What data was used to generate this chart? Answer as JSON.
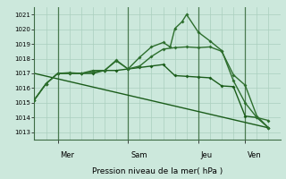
{
  "xlabel": "Pression niveau de la mer( hPa )",
  "ylim": [
    1012.5,
    1021.5
  ],
  "yticks": [
    1013,
    1014,
    1015,
    1016,
    1017,
    1018,
    1019,
    1020,
    1021
  ],
  "bg_color": "#cce8dc",
  "grid_color": "#aacfbe",
  "line_color": "#2d6e2d",
  "line_color_dark": "#1a5c1a",
  "x_day_labels": [
    "Mer",
    "Sam",
    "Jeu",
    "Ven"
  ],
  "vlines_x": [
    1.0,
    4.0,
    7.0,
    9.0
  ],
  "xlim": [
    0,
    10.5
  ],
  "marker_size": 2.0,
  "linewidth": 1.0,
  "series1_x": [
    0,
    0.5,
    1.0,
    1.5,
    2.0,
    2.5,
    3.0,
    3.5,
    4.0,
    4.5,
    5.0,
    5.5,
    6.0,
    6.5,
    7.0,
    7.5,
    8.0,
    8.5,
    9.0,
    9.5,
    10.0
  ],
  "series1_y": [
    1015.2,
    1016.3,
    1017.0,
    1017.05,
    1017.0,
    1017.1,
    1017.2,
    1017.85,
    1017.3,
    1017.5,
    1018.15,
    1018.65,
    1018.75,
    1018.8,
    1018.75,
    1018.8,
    1018.5,
    1016.9,
    1016.2,
    1014.1,
    1013.3
  ],
  "series2_x": [
    0,
    0.5,
    1.0,
    1.5,
    2.0,
    2.5,
    3.0,
    3.5,
    4.0,
    4.5,
    5.0,
    5.5,
    5.8,
    6.0,
    6.3,
    6.5,
    7.0,
    7.5,
    8.0,
    8.5,
    9.0,
    9.5,
    10.0
  ],
  "series2_y": [
    1015.2,
    1016.3,
    1017.0,
    1017.0,
    1017.0,
    1017.2,
    1017.2,
    1017.9,
    1017.3,
    1018.1,
    1018.8,
    1019.1,
    1018.8,
    1020.05,
    1020.5,
    1021.0,
    1019.8,
    1019.2,
    1018.55,
    1016.5,
    1015.0,
    1014.0,
    1013.8
  ],
  "series3_x": [
    0,
    0.5,
    1.0,
    1.5,
    2.0,
    2.5,
    3.0,
    3.5,
    4.0,
    4.5,
    5.0,
    5.5,
    6.0,
    6.5,
    7.0,
    7.5,
    8.0,
    8.5,
    9.0,
    9.5,
    10.0
  ],
  "series3_y": [
    1015.2,
    1016.3,
    1017.0,
    1017.0,
    1017.0,
    1017.0,
    1017.2,
    1017.2,
    1017.3,
    1017.4,
    1017.5,
    1017.6,
    1016.85,
    1016.8,
    1016.75,
    1016.7,
    1016.15,
    1016.1,
    1014.1,
    1014.0,
    1013.3
  ],
  "series4_x": [
    0,
    10.0
  ],
  "series4_y": [
    1017.0,
    1013.3
  ]
}
